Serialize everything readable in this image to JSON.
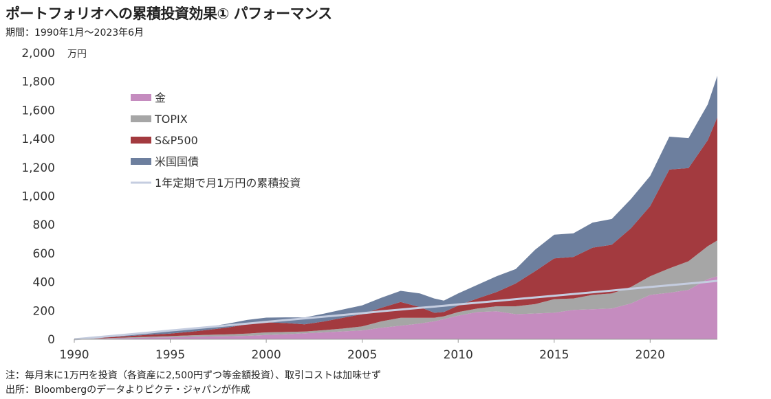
{
  "header": {
    "title": "ポートフォリオへの累積投資効果① パフォーマンス",
    "subtitle": "期間：1990年1月～2023年6月"
  },
  "footer": {
    "note": "注：毎月末に1万円を投資（各資産に2,500円ずつ等金額投資）、取引コストは加味せず",
    "source": "出所：Bloombergのデータよりピクテ・ジャパンが作成"
  },
  "chart_data": {
    "type": "area",
    "stacked": true,
    "y_unit": "万円",
    "ylim": [
      0,
      2000
    ],
    "y_ticks": [
      0,
      200,
      400,
      600,
      800,
      1000,
      1200,
      1400,
      1600,
      1800,
      2000
    ],
    "y_tick_labels": [
      "0",
      "200",
      "400",
      "600",
      "800",
      "1,000",
      "1,200",
      "1,400",
      "1,600",
      "1,800",
      "2,000"
    ],
    "xlim": [
      1990,
      2023.5
    ],
    "x_ticks": [
      1990,
      1995,
      2000,
      2005,
      2010,
      2015,
      2020
    ],
    "x_tick_labels": [
      "1990",
      "1995",
      "2000",
      "2005",
      "2010",
      "2015",
      "2020"
    ],
    "grid": false,
    "legend_position": "top-left",
    "colors": {
      "gold": "#c58cbf",
      "topix": "#a6a6a6",
      "sp500": "#a33a3f",
      "ust": "#6d7f9e",
      "cumulative": "#c5cde0"
    },
    "x": [
      1990,
      1991,
      1992,
      1993,
      1994,
      1995,
      1996,
      1997,
      1998,
      1999,
      2000,
      2001,
      2002,
      2003,
      2004,
      2005,
      2006,
      2007,
      2008,
      2008.75,
      2009.25,
      2010,
      2011,
      2012,
      2013,
      2014,
      2015,
      2016,
      2017,
      2018,
      2019,
      2020,
      2021,
      2022,
      2023,
      2023.5
    ],
    "series": [
      {
        "name": "金",
        "key": "gold",
        "kind": "area",
        "values": [
          0,
          3,
          6,
          9,
          12,
          14,
          17,
          19,
          21,
          24,
          30,
          35,
          42,
          48,
          55,
          62,
          80,
          95,
          110,
          125,
          140,
          165,
          190,
          195,
          175,
          180,
          185,
          205,
          210,
          215,
          250,
          310,
          325,
          345,
          420,
          440
        ]
      },
      {
        "name": "TOPIX",
        "key": "topix",
        "kind": "area",
        "values": [
          0,
          2,
          3,
          5,
          6,
          8,
          10,
          12,
          13,
          16,
          18,
          16,
          12,
          16,
          20,
          28,
          45,
          55,
          40,
          25,
          20,
          25,
          25,
          35,
          55,
          65,
          95,
          80,
          100,
          105,
          115,
          130,
          170,
          200,
          230,
          250
        ]
      },
      {
        "name": "S&P500",
        "key": "sp500",
        "kind": "area",
        "values": [
          0,
          3,
          6,
          10,
          14,
          18,
          25,
          35,
          48,
          65,
          70,
          62,
          50,
          60,
          75,
          85,
          95,
          110,
          75,
          35,
          30,
          45,
          70,
          100,
          160,
          230,
          285,
          290,
          330,
          340,
          410,
          490,
          690,
          650,
          740,
          860
        ]
      },
      {
        "name": "米国国債",
        "key": "ust",
        "kind": "area",
        "values": [
          0,
          3,
          6,
          9,
          12,
          15,
          18,
          22,
          27,
          30,
          33,
          40,
          48,
          55,
          58,
          62,
          70,
          78,
          95,
          100,
          80,
          85,
          95,
          110,
          100,
          150,
          165,
          165,
          175,
          180,
          205,
          210,
          230,
          210,
          250,
          290
        ]
      },
      {
        "name": "1年定期で月1万円の累積投資",
        "key": "cumulative",
        "kind": "line",
        "values": [
          0,
          12,
          24,
          36,
          48,
          61,
          73,
          85,
          97,
          109,
          122,
          134,
          146,
          158,
          170,
          182,
          195,
          207,
          219,
          228,
          234,
          243,
          255,
          267,
          280,
          292,
          304,
          316,
          328,
          340,
          353,
          365,
          377,
          389,
          401,
          408
        ]
      }
    ]
  }
}
